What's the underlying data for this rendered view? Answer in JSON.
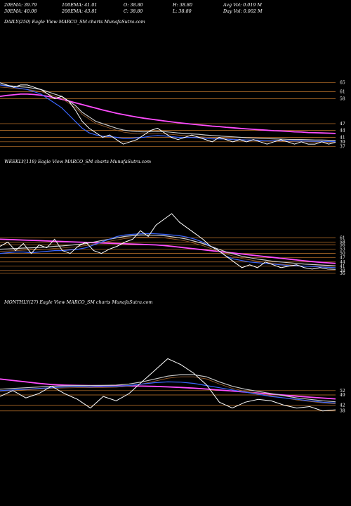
{
  "header": {
    "row1": [
      {
        "label": "20EMA: 39.79"
      },
      {
        "label": "100EMA: 41.01"
      },
      {
        "label": "O: 38.80"
      },
      {
        "label": "H: 38.80"
      },
      {
        "label": "Avg Vol: 0.019  M"
      }
    ],
    "row2": [
      {
        "label": "30EMA: 40.08"
      },
      {
        "label": "200EMA: 43.81"
      },
      {
        "label": "C: 38.80"
      },
      {
        "label": "L: 38.80"
      },
      {
        "label": "Day Vol: 0.002  M"
      }
    ]
  },
  "panels": [
    {
      "label": "DAILY(250) Eagle   View  MARCO_SM charts MunafaSutra.com"
    },
    {
      "label": "WEEKLY(118) Eagle   View  MARCO_SM charts MunafaSutra.com"
    },
    {
      "label": "MONTHLY(27) Eagle   View  MARCO_SM charts MunafaSutra.com"
    }
  ],
  "colors": {
    "price": "#ffffff",
    "ema_fast": "#3a66ff",
    "ema_slow": "#ff4dff",
    "ema_mid": "#c8c8c8",
    "ema_brown": "#a0622e",
    "level_line": "#c87a2e"
  },
  "chart_data": [
    {
      "type": "line",
      "title": "DAILY(250) Eagle   View  MARCO_SM charts MunafaSutra.com",
      "ylim": [
        34,
        68
      ],
      "yticks": [
        "65",
        "61",
        "58",
        "47",
        "44",
        "41",
        "39",
        "37"
      ],
      "ytick_values": [
        65,
        61,
        58,
        47,
        44,
        41,
        39,
        37
      ],
      "series": [
        {
          "role": "price",
          "values": [
            65,
            64,
            63,
            64,
            64,
            63,
            62,
            60,
            58,
            59,
            57,
            53,
            48,
            45,
            43,
            41,
            42,
            40,
            38,
            39,
            40,
            42,
            44,
            45,
            43,
            41,
            40,
            41,
            42,
            41,
            40,
            39,
            41,
            40,
            39,
            40,
            39,
            40,
            39,
            38,
            39,
            40,
            39,
            38,
            39,
            38,
            38,
            39,
            38,
            38.8
          ]
        },
        {
          "role": "ema_fast",
          "values": [
            64,
            63.5,
            63,
            62.5,
            62,
            61,
            60,
            58,
            56,
            54,
            51,
            48,
            45,
            43,
            42,
            41.5,
            41.3,
            41,
            40.5,
            40.5,
            40.8,
            41,
            41.5,
            41.8,
            41.6,
            41.3,
            41,
            40.9,
            40.9,
            40.8,
            40.6,
            40.3,
            40.3,
            40.2,
            40,
            39.9,
            39.8,
            39.8,
            39.7,
            39.5,
            39.5,
            39.6,
            39.5,
            39.4,
            39.4,
            39.3,
            39.2,
            39.2,
            39.1,
            39.1
          ]
        },
        {
          "role": "ema_mid",
          "values": [
            64,
            63.8,
            63.5,
            63.2,
            63,
            62.5,
            62,
            61,
            60,
            59,
            57,
            55,
            52,
            50,
            48,
            47,
            46,
            45,
            44.2,
            43.8,
            43.5,
            43.4,
            43.5,
            43.6,
            43.5,
            43.2,
            42.9,
            42.7,
            42.5,
            42.3,
            42,
            41.8,
            41.6,
            41.4,
            41.2,
            41,
            40.8,
            40.7,
            40.6,
            40.4,
            40.3,
            40.2,
            40.1,
            40,
            40,
            39.9,
            39.8,
            39.8,
            39.7,
            39.7
          ]
        },
        {
          "role": "ema_slow",
          "values": [
            59,
            59.4,
            59.7,
            60,
            60,
            59.8,
            59.5,
            59,
            58.4,
            57.7,
            57,
            56.2,
            55.4,
            54.6,
            53.8,
            53,
            52.3,
            51.6,
            51,
            50.4,
            49.9,
            49.4,
            49,
            48.6,
            48.2,
            47.8,
            47.4,
            47.1,
            46.8,
            46.5,
            46.2,
            45.9,
            45.7,
            45.4,
            45.2,
            44.9,
            44.7,
            44.5,
            44.3,
            44.1,
            43.9,
            43.8,
            43.6,
            43.4,
            43.3,
            43.1,
            43,
            42.9,
            42.8,
            42.7
          ]
        }
      ]
    },
    {
      "type": "line",
      "title": "WEEKLY(118) Eagle   View  MARCO_SM charts MunafaSutra.com",
      "ylim": [
        33,
        80
      ],
      "yticks": [
        "61",
        "58",
        "56",
        "53",
        "50",
        "47",
        "44",
        "41",
        "38",
        "36"
      ],
      "ytick_values": [
        61,
        58,
        56,
        53,
        50,
        47,
        44,
        41,
        38,
        36
      ],
      "series": [
        {
          "role": "price",
          "values": [
            55,
            58,
            52,
            57,
            50,
            56,
            54,
            60,
            52,
            50,
            55,
            58,
            52,
            50,
            53,
            55,
            58,
            60,
            66,
            62,
            70,
            74,
            78,
            72,
            68,
            64,
            60,
            55,
            52,
            48,
            44,
            40,
            42,
            40,
            44,
            42,
            40,
            41,
            42,
            40,
            39,
            40,
            39,
            38.8
          ]
        },
        {
          "role": "ema_fast",
          "values": [
            50,
            50.5,
            51,
            51,
            50.5,
            51,
            51.5,
            52,
            52,
            52.5,
            53,
            54,
            56,
            58,
            60,
            62,
            63,
            63.5,
            63.8,
            64,
            63.8,
            63.5,
            63,
            62.5,
            61.5,
            60,
            58,
            55,
            52,
            48,
            46,
            45,
            44,
            43.5,
            43,
            42.5,
            42,
            41.5,
            41.3,
            41,
            40.8,
            40.5,
            40.2,
            40
          ]
        },
        {
          "role": "ema_mid",
          "values": [
            53,
            53.2,
            53.5,
            53.8,
            54,
            54.2,
            54.5,
            55,
            55.3,
            55.8,
            56.3,
            57,
            58,
            59,
            60,
            61,
            62,
            62.5,
            63,
            63,
            62.8,
            62.5,
            61.8,
            61,
            60,
            58.5,
            57,
            55,
            53,
            51,
            49.5,
            48,
            47,
            46,
            45.3,
            44.5,
            44,
            43.5,
            43,
            42.5,
            42.2,
            41.9,
            41.6,
            41.3
          ]
        },
        {
          "role": "ema_slow",
          "values": [
            60,
            59.8,
            59.6,
            59.4,
            59.2,
            59,
            58.8,
            58.6,
            58.4,
            58.2,
            58,
            57.8,
            57.6,
            57.4,
            57.2,
            57,
            56.8,
            56.6,
            56.4,
            56.2,
            56,
            55.6,
            55,
            54.4,
            53.8,
            53.2,
            52.6,
            52,
            51.4,
            50.8,
            50.2,
            49.6,
            49,
            48.4,
            47.8,
            47.2,
            46.6,
            46,
            45.4,
            44.8,
            44.3,
            43.8,
            43.4,
            43
          ]
        }
      ]
    },
    {
      "type": "line",
      "title": "MONTHLY(27) Eagle   View  MARCO_SM charts MunafaSutra.com",
      "ylim": [
        34,
        80
      ],
      "yticks": [
        "52",
        "49",
        "42",
        "38"
      ],
      "ytick_values": [
        52,
        49,
        42,
        38
      ],
      "series": [
        {
          "role": "price",
          "values": [
            48,
            52,
            47,
            50,
            55,
            50,
            46,
            40,
            48,
            45,
            50,
            58,
            66,
            74,
            70,
            64,
            56,
            44,
            40,
            44,
            46,
            45,
            42,
            40,
            41,
            38,
            38.8
          ]
        },
        {
          "role": "ema_fast",
          "values": [
            52,
            52.5,
            53,
            53.5,
            54,
            54.5,
            54.8,
            54.5,
            54.8,
            55,
            55.5,
            56.5,
            57.5,
            58,
            57.8,
            57,
            55.5,
            54,
            52.5,
            51,
            49.5,
            48,
            47,
            46,
            45,
            44,
            43.5
          ]
        },
        {
          "role": "ema_mid",
          "values": [
            53,
            53.5,
            54,
            54.5,
            55,
            55.3,
            55.5,
            55.5,
            55.6,
            55.8,
            56.5,
            58,
            60,
            62,
            63,
            63,
            61.5,
            58,
            55,
            53,
            51.5,
            50,
            48.5,
            47,
            46,
            45,
            44.3
          ]
        },
        {
          "role": "ema_slow",
          "values": [
            60,
            59,
            58,
            57,
            56.2,
            55.8,
            55.6,
            55.5,
            55.4,
            55.3,
            55.2,
            55.1,
            54.9,
            54.6,
            54.2,
            53.7,
            53.1,
            52.4,
            51.7,
            51,
            50.3,
            49.6,
            48.9,
            48.2,
            47.5,
            46.9,
            46.3
          ]
        }
      ]
    }
  ]
}
